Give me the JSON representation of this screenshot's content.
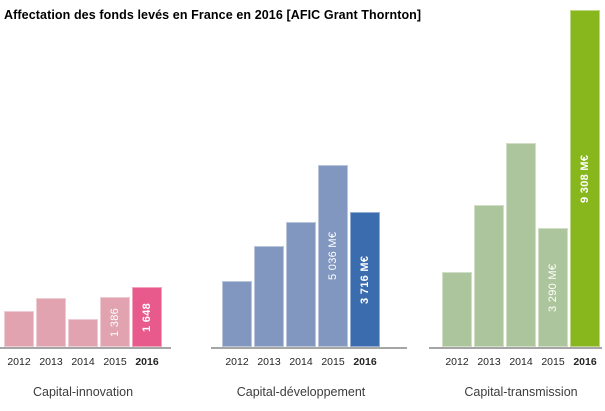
{
  "title": "Affectation des fonds levés en France en 2016  [AFIC Grant Thornton]",
  "chart_data": {
    "type": "bar",
    "unit": "M€",
    "categories": [
      "2012",
      "2013",
      "2014",
      "2015",
      "2016"
    ],
    "highlight_category": "2016",
    "axis_color": "#a6a6a6",
    "value_label_color": "#ffffff",
    "groups": [
      {
        "name": "Capital-innovation",
        "color_light": "#e0a3af",
        "color_highlight": "#e75a8b",
        "values": [
          990,
          1360,
          760,
          1386,
          1648
        ],
        "value_labels": [
          "",
          "",
          "",
          "1 386",
          "1 648"
        ]
      },
      {
        "name": "Capital-développement",
        "color_light": "#8197bf",
        "color_highlight": "#3a6cae",
        "values": [
          1830,
          2800,
          3440,
          5036,
          3716
        ],
        "value_labels": [
          "",
          "",
          "",
          "5 036 M€",
          "3 716 M€"
        ]
      },
      {
        "name": "Capital-transmission",
        "color_light": "#adc59c",
        "color_highlight": "#88b71d",
        "values": [
          2060,
          3920,
          5640,
          3290,
          9308
        ],
        "value_labels": [
          "",
          "",
          "",
          "3 290 M€",
          "9 308 M€"
        ]
      }
    ]
  }
}
